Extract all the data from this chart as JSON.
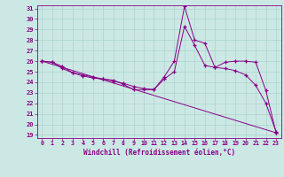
{
  "xlabel": "Windchill (Refroidissement éolien,°C)",
  "ylabel": "",
  "bg_color": "#cce8e4",
  "grid_color": "#aad4cc",
  "line_color": "#880088",
  "marker": "+",
  "xlim": [
    -0.5,
    23.5
  ],
  "ylim": [
    19,
    31
  ],
  "yticks": [
    19,
    20,
    21,
    22,
    23,
    24,
    25,
    26,
    27,
    28,
    29,
    30,
    31
  ],
  "xticks": [
    0,
    1,
    2,
    3,
    4,
    5,
    6,
    7,
    8,
    9,
    10,
    11,
    12,
    13,
    14,
    15,
    16,
    17,
    18,
    19,
    20,
    21,
    22,
    23
  ],
  "line1_x": [
    0,
    1,
    2,
    3,
    4,
    5,
    6,
    7,
    8,
    9,
    10,
    11,
    12,
    13,
    14,
    15,
    16,
    17,
    18,
    19,
    20,
    21,
    22,
    23
  ],
  "line1_y": [
    26.0,
    25.9,
    25.5,
    24.9,
    24.7,
    24.5,
    24.3,
    24.2,
    23.8,
    23.3,
    23.3,
    23.3,
    24.5,
    26.0,
    31.2,
    28.0,
    27.7,
    25.4,
    25.9,
    26.0,
    26.0,
    25.9,
    23.2,
    19.2
  ],
  "line2_x": [
    0,
    1,
    2,
    3,
    4,
    5,
    6,
    7,
    8,
    9,
    10,
    11,
    12,
    13,
    14,
    15,
    16,
    17,
    18,
    19,
    20,
    21,
    22,
    23
  ],
  "line2_y": [
    26.0,
    25.9,
    25.3,
    24.9,
    24.6,
    24.4,
    24.3,
    24.1,
    23.9,
    23.6,
    23.4,
    23.3,
    24.3,
    25.0,
    29.3,
    27.5,
    25.6,
    25.4,
    25.3,
    25.1,
    24.7,
    23.7,
    22.0,
    19.3
  ],
  "line3_x": [
    0,
    23
  ],
  "line3_y": [
    26.0,
    19.2
  ]
}
